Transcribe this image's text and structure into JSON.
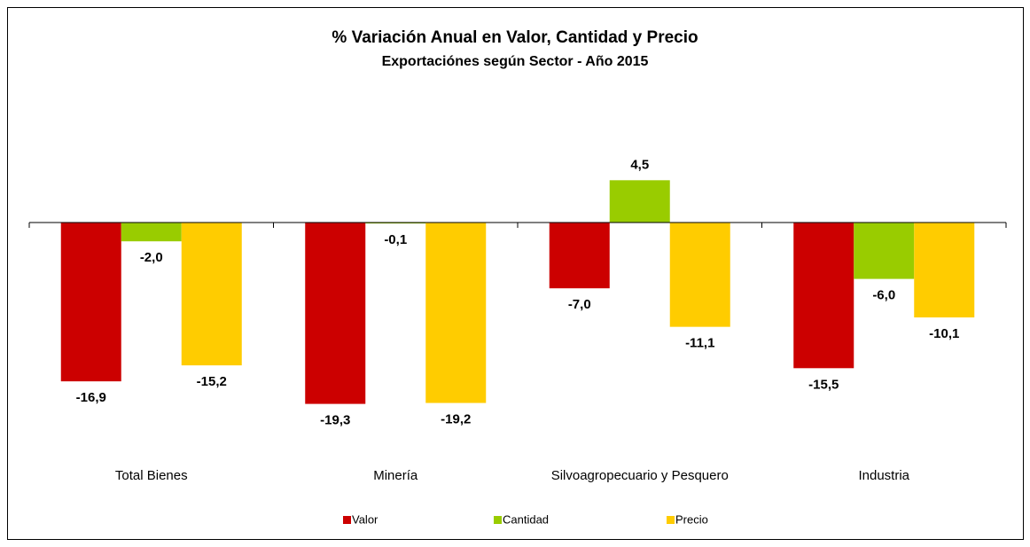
{
  "chart_data": {
    "type": "bar",
    "title": "% Variación Anual en Valor, Cantidad y Precio",
    "subtitle": "Exportaciónes según Sector - Año 2015",
    "categories": [
      "Total Bienes",
      "Minería",
      "Silvoagropecuario y Pesquero",
      "Industria"
    ],
    "series": [
      {
        "name": "Valor",
        "color": "#cc0000",
        "values": [
          -16.9,
          -19.3,
          -7.0,
          -15.5
        ],
        "value_labels": [
          "-16,9",
          "-19,3",
          "-7,0",
          "-15,5"
        ]
      },
      {
        "name": "Cantidad",
        "color": "#99cc00",
        "values": [
          -2.0,
          -0.1,
          4.5,
          -6.0
        ],
        "value_labels": [
          "-2,0",
          "-0,1",
          "4,5",
          "-6,0"
        ]
      },
      {
        "name": "Precio",
        "color": "#ffcc00",
        "values": [
          -15.2,
          -19.2,
          -11.1,
          -10.1
        ],
        "value_labels": [
          "-15,2",
          "-19,2",
          "-11,1",
          "-10,1"
        ]
      }
    ],
    "legend": "bottom"
  }
}
